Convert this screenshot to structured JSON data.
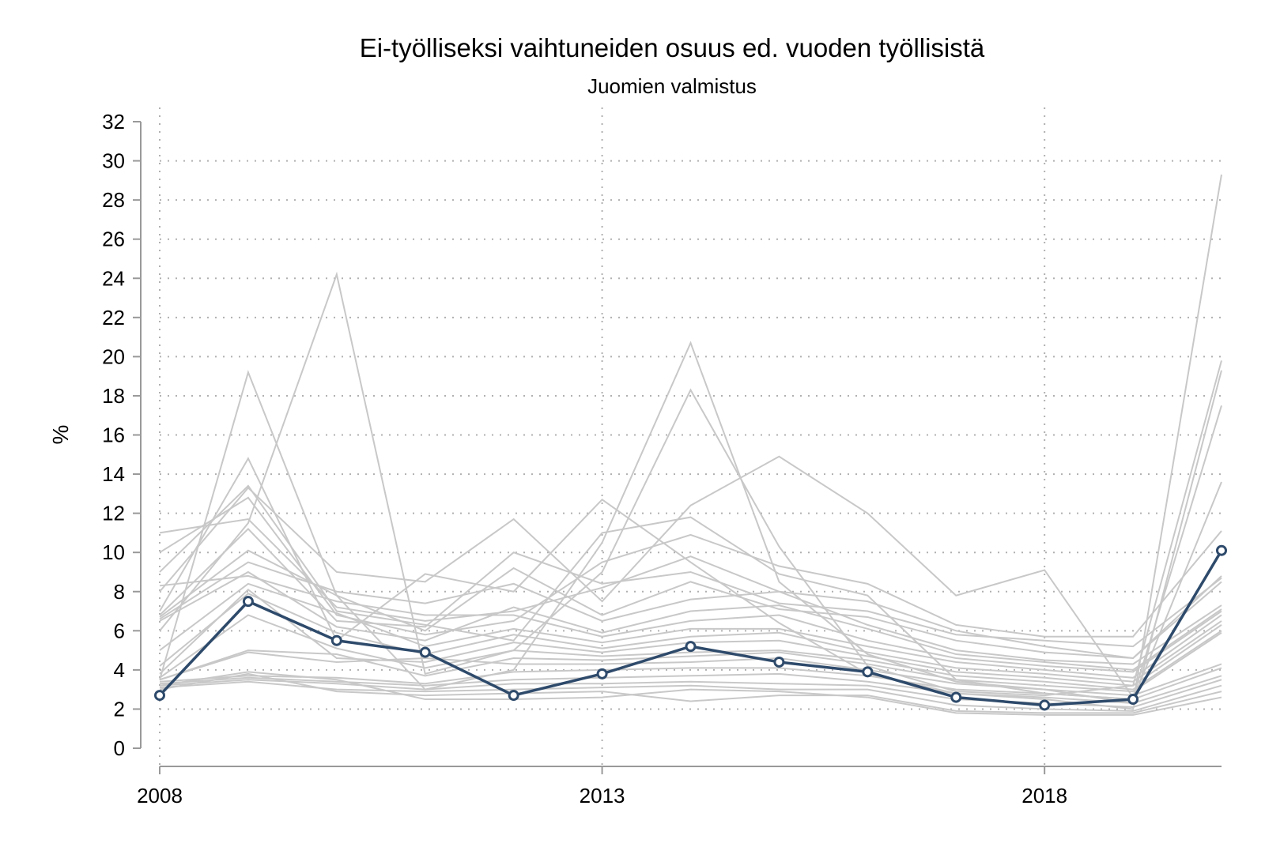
{
  "chart_data": {
    "type": "line",
    "title": "Ei-työlliseksi vaihtuneiden osuus ed. vuoden työllisistä",
    "subtitle": "Juomien valmistus",
    "xlabel": "",
    "ylabel": "%",
    "xlim": [
      2008,
      2020
    ],
    "ylim": [
      0,
      32
    ],
    "x_ticks": [
      2008,
      2013,
      2018
    ],
    "y_ticks": [
      0,
      2,
      4,
      6,
      8,
      10,
      12,
      14,
      16,
      18,
      20,
      22,
      24,
      26,
      28,
      30,
      32
    ],
    "grid": true,
    "x": [
      2008,
      2009,
      2010,
      2011,
      2012,
      2013,
      2014,
      2015,
      2016,
      2017,
      2018,
      2019,
      2020
    ],
    "highlight": {
      "color": "#2e4a6b",
      "values": [
        2.7,
        7.5,
        5.5,
        4.9,
        2.7,
        3.8,
        5.2,
        4.4,
        3.9,
        2.6,
        2.2,
        2.5,
        10.1
      ]
    },
    "background_color": "#c8c8c8",
    "background_series": [
      [
        3.5,
        19.2,
        7.8,
        3.0,
        4.0,
        10.5,
        20.7,
        8.5,
        4.8,
        3.4,
        3.0,
        2.3,
        29.3
      ],
      [
        6.0,
        11.5,
        24.2,
        3.8,
        5.0,
        9.0,
        18.3,
        10.3,
        4.2,
        2.9,
        2.7,
        3.2,
        19.8
      ],
      [
        7.0,
        14.8,
        5.5,
        8.9,
        8.0,
        12.7,
        9.5,
        6.4,
        3.8,
        2.8,
        2.5,
        2.0,
        19.3
      ],
      [
        8.0,
        13.3,
        9.0,
        8.5,
        11.7,
        7.5,
        12.4,
        14.9,
        12.0,
        7.8,
        9.1,
        2.6,
        17.5
      ],
      [
        9.0,
        13.4,
        7.0,
        6.3,
        5.5,
        11.0,
        11.8,
        8.9,
        7.8,
        3.5,
        2.8,
        2.5,
        13.6
      ],
      [
        10.0,
        12.8,
        6.8,
        5.8,
        6.5,
        9.5,
        10.9,
        9.3,
        8.4,
        6.3,
        5.7,
        5.7,
        11.1
      ],
      [
        11.0,
        11.7,
        7.2,
        6.5,
        7.0,
        8.2,
        9.8,
        8.0,
        7.5,
        6.0,
        5.2,
        4.6,
        8.8
      ],
      [
        6.8,
        11.2,
        6.5,
        6.2,
        10.0,
        8.4,
        9.0,
        7.4,
        7.0,
        5.8,
        5.5,
        5.2,
        8.7
      ],
      [
        6.7,
        10.1,
        7.8,
        6.0,
        9.2,
        6.8,
        8.5,
        7.1,
        6.7,
        5.5,
        4.9,
        4.6,
        8.5
      ],
      [
        6.6,
        9.5,
        8.0,
        7.4,
        8.4,
        6.5,
        7.6,
        8.0,
        6.3,
        5.0,
        4.5,
        4.3,
        7.3
      ],
      [
        6.5,
        9.0,
        6.2,
        5.5,
        7.2,
        5.9,
        7.0,
        7.3,
        6.1,
        4.8,
        4.4,
        4.0,
        7.1
      ],
      [
        8.3,
        8.8,
        7.5,
        6.8,
        6.8,
        5.7,
        6.5,
        6.8,
        5.5,
        4.6,
        4.2,
        3.9,
        7.0
      ],
      [
        5.0,
        8.4,
        6.9,
        5.2,
        6.1,
        5.4,
        6.1,
        6.1,
        5.2,
        4.4,
        4.0,
        3.6,
        6.8
      ],
      [
        4.2,
        7.9,
        5.9,
        4.8,
        5.8,
        5.1,
        5.7,
        5.9,
        4.9,
        4.1,
        3.8,
        3.4,
        6.5
      ],
      [
        3.8,
        8.1,
        4.6,
        4.4,
        5.4,
        4.9,
        5.4,
        5.5,
        4.7,
        3.9,
        3.6,
        3.2,
        6.3
      ],
      [
        3.6,
        6.8,
        5.1,
        4.1,
        5.0,
        4.7,
        4.9,
        5.0,
        4.5,
        3.7,
        3.4,
        3.0,
        6.0
      ],
      [
        3.5,
        5.0,
        4.8,
        3.7,
        4.6,
        4.5,
        4.7,
        4.9,
        4.3,
        3.5,
        3.2,
        2.9,
        5.9
      ],
      [
        3.5,
        4.9,
        4.4,
        4.6,
        4.3,
        4.3,
        4.4,
        4.6,
        4.0,
        3.3,
        3.0,
        2.7,
        4.3
      ],
      [
        3.4,
        3.7,
        3.6,
        3.3,
        3.9,
        4.0,
        4.1,
        4.1,
        3.7,
        3.0,
        2.8,
        2.5,
        4.1
      ],
      [
        3.3,
        3.6,
        3.4,
        3.2,
        3.5,
        3.6,
        3.7,
        3.8,
        3.4,
        2.8,
        2.6,
        2.3,
        3.7
      ],
      [
        3.2,
        3.5,
        3.3,
        3.0,
        3.3,
        3.3,
        3.4,
        3.3,
        3.2,
        2.5,
        2.3,
        2.1,
        3.5
      ],
      [
        3.1,
        3.4,
        3.0,
        2.9,
        3.0,
        3.1,
        3.2,
        3.0,
        3.0,
        2.2,
        2.0,
        1.9,
        3.2
      ],
      [
        3.0,
        3.8,
        2.9,
        2.7,
        2.8,
        2.9,
        2.4,
        2.7,
        2.7,
        1.9,
        1.8,
        1.8,
        2.9
      ],
      [
        3.2,
        3.9,
        3.5,
        2.5,
        2.5,
        2.6,
        3.0,
        2.9,
        2.6,
        1.8,
        1.7,
        1.7,
        2.6
      ]
    ]
  }
}
